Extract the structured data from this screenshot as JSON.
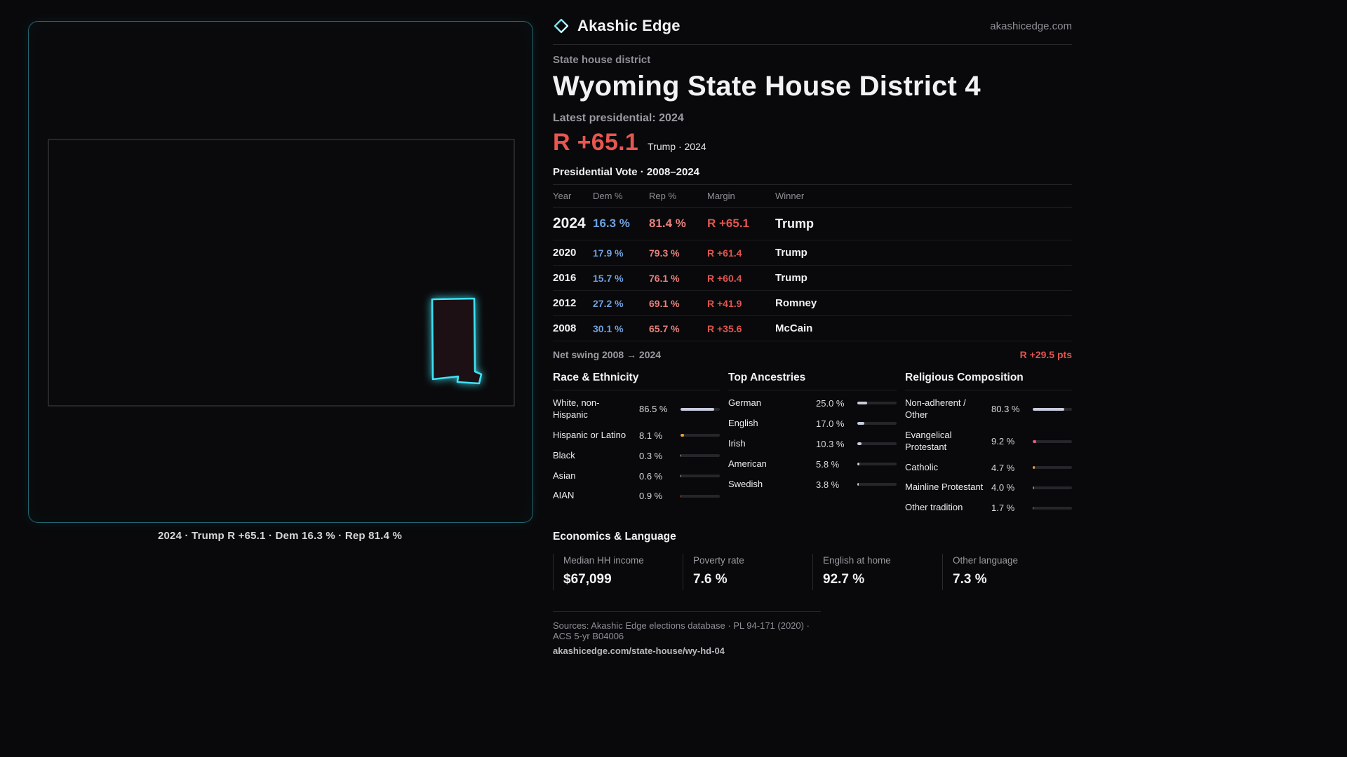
{
  "brand": {
    "name": "Akashic Edge",
    "domain": "akashicedge.com",
    "logo_icon": "diamond-icon",
    "accent_cyan": "#3fe0f2",
    "accent_red": "#e8564f",
    "accent_blue": "#6fa0de"
  },
  "page": {
    "eyebrow": "State house district",
    "title": "Wyoming State House District 4",
    "latest_label": "Latest presidential: 2024",
    "headline_margin": "R +65.1",
    "headline_detail": "Trump · 2024"
  },
  "map": {
    "caption": "2024 · Trump R +65.1 · Dem 16.3 % · Rep 81.4 %",
    "outline_color": "#3fe0f2"
  },
  "vote_table": {
    "title": "Presidential Vote · 2008–2024",
    "columns": [
      "Year",
      "Dem %",
      "Rep %",
      "Margin",
      "Winner"
    ],
    "rows": [
      {
        "year": "2024",
        "dem": "16.3 %",
        "rep": "81.4 %",
        "margin": "R +65.1",
        "winner": "Trump"
      },
      {
        "year": "2020",
        "dem": "17.9 %",
        "rep": "79.3 %",
        "margin": "R +61.4",
        "winner": "Trump"
      },
      {
        "year": "2016",
        "dem": "15.7 %",
        "rep": "76.1 %",
        "margin": "R +60.4",
        "winner": "Trump"
      },
      {
        "year": "2012",
        "dem": "27.2 %",
        "rep": "69.1 %",
        "margin": "R +41.9",
        "winner": "Romney"
      },
      {
        "year": "2008",
        "dem": "30.1 %",
        "rep": "65.7 %",
        "margin": "R +35.6",
        "winner": "McCain"
      }
    ],
    "net_swing_label": "Net swing 2008 → 2024",
    "net_swing_value": "R +29.5 pts"
  },
  "demographics": {
    "race": {
      "title": "Race & Ethnicity",
      "items": [
        {
          "label": "White, non-Hispanic",
          "value": "86.5 %",
          "pct": 86.5,
          "color": "#c9ccdd"
        },
        {
          "label": "Hispanic or Latino",
          "value": "8.1 %",
          "pct": 8.1,
          "color": "#e2a23e"
        },
        {
          "label": "Black",
          "value": "0.3 %",
          "pct": 0.3,
          "color": "#c9ccdd"
        },
        {
          "label": "Asian",
          "value": "0.6 %",
          "pct": 0.6,
          "color": "#c9ccdd"
        },
        {
          "label": "AIAN",
          "value": "0.9 %",
          "pct": 0.9,
          "color": "#cf5b3a"
        }
      ]
    },
    "ancestries": {
      "title": "Top Ancestries",
      "items": [
        {
          "label": "German",
          "value": "25.0 %",
          "pct": 25.0,
          "color": "#c9ccdd"
        },
        {
          "label": "English",
          "value": "17.0 %",
          "pct": 17.0,
          "color": "#c9ccdd"
        },
        {
          "label": "Irish",
          "value": "10.3 %",
          "pct": 10.3,
          "color": "#c9ccdd"
        },
        {
          "label": "American",
          "value": "5.8 %",
          "pct": 5.8,
          "color": "#c9ccdd"
        },
        {
          "label": "Swedish",
          "value": "3.8 %",
          "pct": 3.8,
          "color": "#c9ccdd"
        }
      ]
    },
    "religion": {
      "title": "Religious Composition",
      "items": [
        {
          "label": "Non-adherent / Other",
          "value": "80.3 %",
          "pct": 80.3,
          "color": "#c9ccdd"
        },
        {
          "label": "Evangelical Protestant",
          "value": "9.2 %",
          "pct": 9.2,
          "color": "#e0607a"
        },
        {
          "label": "Catholic",
          "value": "4.7 %",
          "pct": 4.7,
          "color": "#e2a23e"
        },
        {
          "label": "Mainline Protestant",
          "value": "4.0 %",
          "pct": 4.0,
          "color": "#5a8fd6"
        },
        {
          "label": "Other tradition",
          "value": "1.7 %",
          "pct": 1.7,
          "color": "#9a9aa4"
        }
      ]
    }
  },
  "economics": {
    "title": "Economics & Language",
    "stats": [
      {
        "label": "Median HH income",
        "value": "$67,099"
      },
      {
        "label": "Poverty rate",
        "value": "7.6 %"
      },
      {
        "label": "English at home",
        "value": "92.7 %"
      },
      {
        "label": "Other language",
        "value": "7.3 %"
      }
    ]
  },
  "footer": {
    "sources": "Sources: Akashic Edge elections database · PL 94-171 (2020) · ACS 5-yr B04006",
    "permalink": "akashicedge.com/state-house/wy-hd-04"
  },
  "chart_data": [
    {
      "type": "table",
      "title": "Presidential Vote · 2008–2024",
      "columns": [
        "Year",
        "Dem %",
        "Rep %",
        "Margin",
        "Winner"
      ],
      "rows": [
        [
          "2024",
          16.3,
          81.4,
          "R +65.1",
          "Trump"
        ],
        [
          "2020",
          17.9,
          79.3,
          "R +61.4",
          "Trump"
        ],
        [
          "2016",
          15.7,
          76.1,
          "R +60.4",
          "Trump"
        ],
        [
          "2012",
          27.2,
          69.1,
          "R +41.9",
          "Romney"
        ],
        [
          "2008",
          30.1,
          65.7,
          "R +35.6",
          "McCain"
        ]
      ]
    },
    {
      "type": "bar",
      "title": "Race & Ethnicity",
      "categories": [
        "White, non-Hispanic",
        "Hispanic or Latino",
        "Black",
        "Asian",
        "AIAN"
      ],
      "values": [
        86.5,
        8.1,
        0.3,
        0.6,
        0.9
      ],
      "unit": "%"
    },
    {
      "type": "bar",
      "title": "Top Ancestries",
      "categories": [
        "German",
        "English",
        "Irish",
        "American",
        "Swedish"
      ],
      "values": [
        25.0,
        17.0,
        10.3,
        5.8,
        3.8
      ],
      "unit": "%"
    },
    {
      "type": "bar",
      "title": "Religious Composition",
      "categories": [
        "Non-adherent / Other",
        "Evangelical Protestant",
        "Catholic",
        "Mainline Protestant",
        "Other tradition"
      ],
      "values": [
        80.3,
        9.2,
        4.7,
        4.0,
        1.7
      ],
      "unit": "%"
    }
  ]
}
